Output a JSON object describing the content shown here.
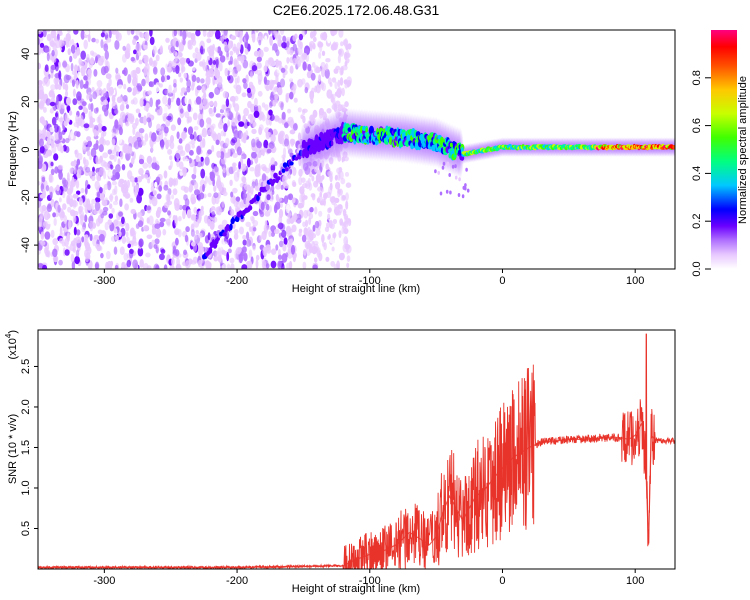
{
  "title": "C2E6.2025.172.06.48.G31",
  "chart_data": [
    {
      "type": "heatmap",
      "xlabel": "Height of straight line (km)",
      "ylabel": "Frequency (Hz)",
      "xlim": [
        -350,
        130
      ],
      "ylim": [
        -50,
        50
      ],
      "x_ticks": [
        -300,
        -200,
        -100,
        0,
        100
      ],
      "y_ticks": [
        -40,
        -20,
        0,
        20,
        40
      ],
      "colorbar": {
        "label": "Normalized spectral amplitude",
        "range": [
          0.0,
          1.0
        ],
        "ticks": [
          "0.0",
          "0.2",
          "0.4",
          "0.6",
          "0.8"
        ],
        "colormap": [
          "#ffffff",
          "#e8c8ff",
          "#b070ff",
          "#6a00ff",
          "#0000ff",
          "#00c8ff",
          "#00ff80",
          "#40ff00",
          "#c8ff00",
          "#ffc800",
          "#ff5000",
          "#ff0000",
          "#ff0080"
        ]
      },
      "features": [
        {
          "name": "broadband noise",
          "x_range": [
            -350,
            -115
          ],
          "y_range": [
            -50,
            50
          ]
        },
        {
          "name": "linear drift",
          "points": [
            [
              -225,
              -44
            ],
            [
              -185,
              -20
            ],
            [
              -150,
              0
            ],
            [
              -120,
              8
            ]
          ]
        },
        {
          "name": "main trace",
          "points": [
            [
              -150,
              0
            ],
            [
              -120,
              7
            ],
            [
              -100,
              6
            ],
            [
              -75,
              5
            ],
            [
              -50,
              3
            ],
            [
              -30,
              -2
            ],
            [
              0,
              1
            ],
            [
              50,
              1
            ],
            [
              100,
              1
            ],
            [
              130,
              1
            ]
          ]
        }
      ]
    },
    {
      "type": "line",
      "xlabel": "Height of straight line (km)",
      "ylabel": "SNR (10 * v/v)",
      "y_scale_label": "(x10",
      "y_scale_exp": "4",
      "xlim": [
        -350,
        130
      ],
      "ylim": [
        0,
        2.95
      ],
      "x_ticks": [
        -300,
        -200,
        -100,
        0,
        100
      ],
      "y_ticks": [
        "0.5",
        "1.0",
        "1.5",
        "2.0",
        "2.5"
      ],
      "series": [
        {
          "color": "#e8332a",
          "x": [
            -350,
            -300,
            -200,
            -120,
            -110,
            -100,
            -90,
            -80,
            -70,
            -60,
            -55,
            -50,
            -45,
            -40,
            -35,
            -30,
            -25,
            -20,
            -15,
            -10,
            -5,
            0,
            10,
            20,
            30,
            40,
            50,
            60,
            70,
            80,
            90,
            95,
            100,
            105,
            108,
            110,
            112,
            115,
            120,
            130
          ],
          "y": [
            0.02,
            0.02,
            0.02,
            0.04,
            0.12,
            0.18,
            0.22,
            0.3,
            0.45,
            0.35,
            0.3,
            0.4,
            0.7,
            0.9,
            0.75,
            0.6,
            0.75,
            0.9,
            0.95,
            1.05,
            1.15,
            1.25,
            1.4,
            1.5,
            1.57,
            1.58,
            1.6,
            1.6,
            1.61,
            1.62,
            1.62,
            1.6,
            1.65,
            1.8,
            1.3,
            0.3,
            1.65,
            1.6,
            1.58,
            1.58
          ]
        }
      ]
    }
  ]
}
